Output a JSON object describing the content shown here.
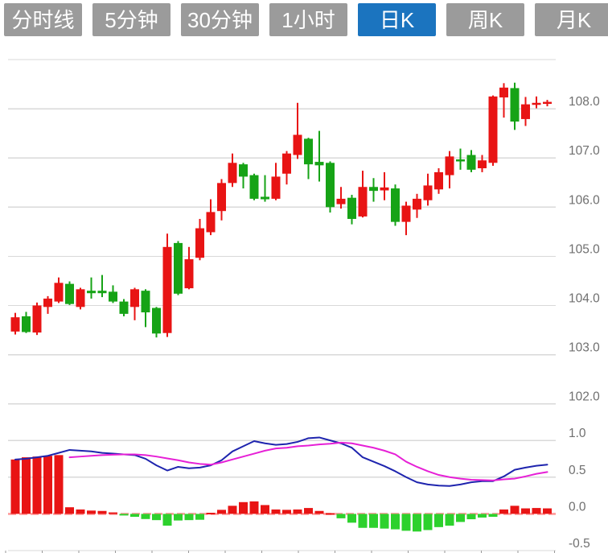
{
  "tabs": {
    "items": [
      {
        "label": "分时线",
        "active": false
      },
      {
        "label": "5分钟",
        "active": false
      },
      {
        "label": "30分钟",
        "active": false
      },
      {
        "label": "1小时",
        "active": false
      },
      {
        "label": "日K",
        "active": true
      },
      {
        "label": "周K",
        "active": false
      },
      {
        "label": "月K",
        "active": false
      }
    ]
  },
  "colors": {
    "up": "#e81414",
    "down": "#16a316",
    "hist_up": "#e81414",
    "hist_down": "#2dd12d",
    "dif_line": "#1e24ae",
    "dea_line": "#e620d6",
    "zero_dash": "#ff9a9a",
    "grid": "#d9d9d9",
    "axis_label": "#6f6f6f",
    "tab_bg": "#9b9b9b",
    "tab_active_bg": "#1b74bf",
    "tab_text": "#ffffff",
    "background": "#ffffff"
  },
  "chart_data": {
    "type": "candlestick",
    "title": "",
    "xlabel": "",
    "x_axis_tick_labels": [],
    "panels": {
      "price": {
        "ylabel": "",
        "ylim": [
          102.0,
          109.0
        ],
        "grid": true,
        "yticks": [
          {
            "value": 108.0,
            "label": "108.0"
          },
          {
            "value": 107.0,
            "label": "107.0"
          },
          {
            "value": 106.0,
            "label": "106.0"
          },
          {
            "value": 105.0,
            "label": "105.0"
          },
          {
            "value": 104.0,
            "label": "104.0"
          },
          {
            "value": 103.0,
            "label": "103.0"
          },
          {
            "value": 102.0,
            "label": "102.0"
          }
        ],
        "unlabeled_top_gridline": 109.0,
        "candles_ohlc": [
          [
            103.47,
            103.85,
            103.41,
            103.76
          ],
          [
            103.78,
            103.87,
            103.44,
            103.46
          ],
          [
            103.45,
            104.06,
            103.4,
            104.0
          ],
          [
            103.97,
            104.19,
            103.83,
            104.14
          ],
          [
            104.08,
            104.57,
            104.05,
            104.46
          ],
          [
            104.44,
            104.49,
            104.01,
            104.03
          ],
          [
            103.97,
            104.36,
            103.92,
            104.33
          ],
          [
            104.3,
            104.57,
            104.14,
            104.25
          ],
          [
            104.3,
            104.62,
            104.17,
            104.25
          ],
          [
            104.28,
            104.41,
            104.05,
            104.08
          ],
          [
            104.08,
            104.13,
            103.78,
            103.83
          ],
          [
            103.97,
            104.36,
            103.7,
            104.33
          ],
          [
            104.3,
            104.33,
            103.56,
            103.86
          ],
          [
            103.95,
            103.97,
            103.35,
            103.43
          ],
          [
            103.44,
            105.46,
            103.36,
            105.19
          ],
          [
            105.27,
            105.31,
            104.21,
            104.24
          ],
          [
            104.35,
            105.19,
            104.33,
            104.94
          ],
          [
            104.97,
            105.76,
            104.92,
            105.57
          ],
          [
            105.49,
            106.16,
            105.43,
            105.9
          ],
          [
            105.92,
            106.57,
            105.73,
            106.49
          ],
          [
            106.49,
            107.09,
            106.41,
            106.9
          ],
          [
            106.87,
            106.9,
            106.38,
            106.62
          ],
          [
            106.65,
            106.68,
            106.14,
            106.17
          ],
          [
            106.21,
            106.65,
            106.11,
            106.16
          ],
          [
            106.17,
            106.9,
            106.14,
            106.62
          ],
          [
            106.68,
            107.14,
            106.46,
            107.09
          ],
          [
            107.06,
            108.12,
            106.98,
            107.47
          ],
          [
            107.39,
            107.41,
            106.57,
            106.87
          ],
          [
            106.92,
            107.55,
            106.52,
            106.85
          ],
          [
            106.9,
            106.93,
            105.89,
            106.0
          ],
          [
            106.06,
            106.41,
            105.97,
            106.17
          ],
          [
            106.19,
            106.25,
            105.65,
            105.76
          ],
          [
            105.81,
            106.74,
            105.79,
            106.41
          ],
          [
            106.41,
            106.59,
            106.11,
            106.33
          ],
          [
            106.34,
            106.71,
            106.14,
            106.4
          ],
          [
            106.38,
            106.46,
            105.62,
            105.7
          ],
          [
            105.7,
            106.11,
            105.43,
            106.03
          ],
          [
            105.95,
            106.27,
            105.78,
            106.17
          ],
          [
            106.14,
            106.68,
            106.03,
            106.44
          ],
          [
            106.36,
            106.79,
            106.27,
            106.71
          ],
          [
            106.65,
            107.14,
            106.38,
            107.03
          ],
          [
            106.97,
            107.19,
            106.76,
            106.93
          ],
          [
            107.06,
            107.16,
            106.71,
            106.76
          ],
          [
            106.79,
            107.06,
            106.71,
            106.95
          ],
          [
            106.9,
            108.27,
            106.84,
            108.25
          ],
          [
            108.23,
            108.52,
            107.82,
            108.43
          ],
          [
            108.42,
            108.53,
            107.57,
            107.74
          ],
          [
            107.79,
            108.24,
            107.65,
            108.09
          ],
          [
            108.08,
            108.25,
            108.01,
            108.12
          ],
          [
            108.1,
            108.18,
            108.05,
            108.14
          ]
        ]
      },
      "macd": {
        "ylabel": "",
        "ylim": [
          -0.5,
          1.0
        ],
        "grid": true,
        "zero_line_dashed": true,
        "yticks": [
          {
            "value": 1.0,
            "label": "1.0"
          },
          {
            "value": 0.5,
            "label": "0.5"
          },
          {
            "value": 0.0,
            "label": "0.0"
          },
          {
            "value": -0.5,
            "label": "-0.5"
          }
        ],
        "histogram": [
          0.74,
          0.77,
          0.78,
          0.79,
          0.8,
          0.09,
          0.06,
          0.045,
          0.04,
          0.02,
          -0.01,
          -0.04,
          -0.07,
          -0.085,
          -0.16,
          -0.09,
          -0.085,
          -0.08,
          0.015,
          0.055,
          0.11,
          0.16,
          0.17,
          0.12,
          0.06,
          0.055,
          0.06,
          0.08,
          0.04,
          0.01,
          -0.06,
          -0.12,
          -0.19,
          -0.19,
          -0.2,
          -0.21,
          -0.23,
          -0.24,
          -0.22,
          -0.18,
          -0.16,
          -0.11,
          -0.073,
          -0.05,
          -0.04,
          0.06,
          0.11,
          0.075,
          0.08,
          0.075
        ],
        "series": [
          {
            "name": "DIF",
            "values": [
              0.74,
              0.75,
              0.77,
              0.79,
              0.83,
              0.87,
              0.86,
              0.85,
              0.83,
              0.82,
              0.81,
              0.8,
              0.75,
              0.66,
              0.59,
              0.64,
              0.62,
              0.63,
              0.66,
              0.73,
              0.85,
              0.92,
              0.99,
              0.96,
              0.94,
              0.95,
              0.98,
              1.03,
              1.04,
              1.0,
              0.96,
              0.9,
              0.77,
              0.71,
              0.65,
              0.58,
              0.5,
              0.43,
              0.4,
              0.385,
              0.38,
              0.4,
              0.43,
              0.445,
              0.445,
              0.51,
              0.6,
              0.63,
              0.655,
              0.67
            ]
          },
          {
            "name": "DEA",
            "values": [
              null,
              null,
              null,
              null,
              null,
              0.77,
              0.78,
              0.79,
              0.8,
              0.805,
              0.81,
              0.81,
              0.8,
              0.78,
              0.755,
              0.73,
              0.7,
              0.68,
              0.67,
              0.7,
              0.74,
              0.78,
              0.82,
              0.86,
              0.89,
              0.9,
              0.92,
              0.93,
              0.945,
              0.955,
              0.97,
              0.96,
              0.93,
              0.9,
              0.86,
              0.81,
              0.71,
              0.64,
              0.58,
              0.53,
              0.5,
              0.48,
              0.465,
              0.46,
              0.455,
              0.47,
              0.48,
              0.51,
              0.545,
              0.57
            ]
          }
        ]
      }
    }
  }
}
